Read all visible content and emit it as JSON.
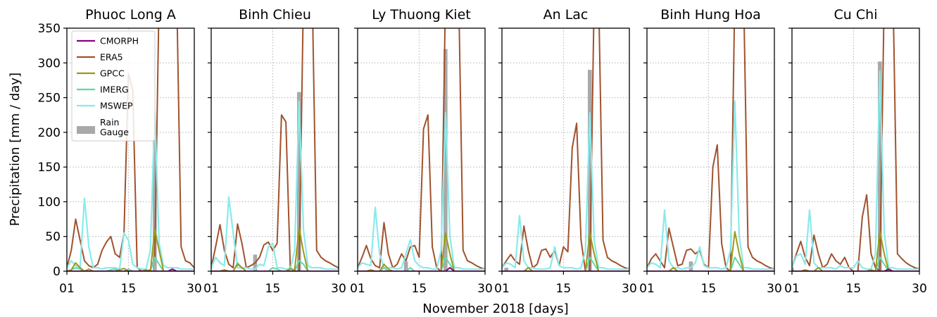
{
  "chart_data": {
    "type": "line",
    "xlabel": "November 2018 [days]",
    "ylabel": "Precipitation [mm / day]",
    "xlim": [
      1,
      30
    ],
    "ylim": [
      0,
      350
    ],
    "xticks": [
      1,
      15,
      30
    ],
    "xtick_labels": [
      "01",
      "15",
      "30"
    ],
    "yticks": [
      0,
      50,
      100,
      150,
      200,
      250,
      300,
      350
    ],
    "grid": true,
    "legend_position": "top-left of first panel",
    "series_styles": [
      {
        "key": "CMORPH",
        "name": "CMORPH",
        "color": "#8b008b",
        "kind": "line"
      },
      {
        "key": "ERA5",
        "name": "ERA5",
        "color": "#a0522d",
        "kind": "line"
      },
      {
        "key": "GPCC",
        "name": "GPCC",
        "color": "#9a9a1a",
        "kind": "line"
      },
      {
        "key": "IMERG",
        "name": "IMERG",
        "color": "#5fd9a0",
        "kind": "line"
      },
      {
        "key": "MSWEP",
        "name": "MSWEP",
        "color": "#8aeaea",
        "kind": "line"
      },
      {
        "key": "gauge",
        "name": "Rain\nGauge",
        "color": "#a9a9a9",
        "kind": "bar"
      }
    ],
    "panels": [
      {
        "title": "Phuoc Long A",
        "series": {
          "CMORPH": [
            0,
            0,
            0,
            0,
            0,
            0,
            0,
            0,
            0,
            0,
            0,
            0,
            0,
            0,
            0,
            0,
            0,
            0,
            0,
            0,
            0,
            0,
            0,
            0,
            3,
            0,
            0,
            0,
            0,
            0
          ],
          "ERA5": [
            5,
            30,
            75,
            45,
            15,
            8,
            5,
            10,
            30,
            42,
            50,
            25,
            20,
            55,
            285,
            260,
            5,
            0,
            0,
            2,
            20,
            400,
            400,
            400,
            400,
            400,
            35,
            15,
            12,
            5
          ],
          "GPCC": [
            0,
            2,
            12,
            5,
            0,
            3,
            0,
            0,
            0,
            0,
            0,
            0,
            2,
            4,
            0,
            0,
            0,
            0,
            2,
            0,
            60,
            30,
            0,
            0,
            0,
            0,
            0,
            0,
            0,
            0
          ],
          "IMERG": [
            0,
            2,
            5,
            3,
            0,
            0,
            0,
            0,
            0,
            0,
            2,
            3,
            0,
            0,
            3,
            0,
            0,
            0,
            0,
            0,
            20,
            10,
            0,
            0,
            0,
            0,
            0,
            0,
            0,
            0
          ],
          "MSWEP": [
            5,
            15,
            8,
            5,
            105,
            35,
            5,
            5,
            3,
            5,
            5,
            5,
            3,
            55,
            45,
            10,
            5,
            3,
            3,
            30,
            230,
            40,
            8,
            5,
            5,
            5,
            3,
            3,
            3,
            3
          ],
          "gauge": [
            0,
            0,
            0,
            0,
            0,
            0,
            0,
            0,
            0,
            0,
            0,
            0,
            0,
            0,
            0,
            0,
            0,
            0,
            0,
            0,
            190,
            0,
            0,
            0,
            0,
            0,
            0,
            0,
            0,
            0
          ]
        }
      },
      {
        "title": "Binh Chieu",
        "series": {
          "CMORPH": [
            0,
            0,
            0,
            0,
            0,
            0,
            0,
            0,
            0,
            0,
            0,
            0,
            0,
            0,
            0,
            0,
            0,
            0,
            0,
            0,
            0,
            0,
            0,
            0,
            0,
            0,
            0,
            0,
            0,
            0
          ],
          "ERA5": [
            5,
            35,
            67,
            30,
            10,
            5,
            68,
            40,
            5,
            8,
            12,
            20,
            38,
            42,
            30,
            40,
            225,
            215,
            5,
            0,
            0,
            400,
            400,
            400,
            30,
            20,
            15,
            12,
            8,
            5
          ],
          "GPCC": [
            0,
            0,
            0,
            2,
            0,
            0,
            10,
            5,
            0,
            0,
            0,
            0,
            0,
            0,
            0,
            0,
            0,
            0,
            3,
            2,
            62,
            28,
            0,
            0,
            0,
            0,
            0,
            0,
            0,
            0
          ],
          "IMERG": [
            0,
            0,
            0,
            0,
            0,
            0,
            12,
            5,
            0,
            0,
            0,
            0,
            0,
            0,
            5,
            3,
            0,
            0,
            5,
            0,
            15,
            10,
            0,
            0,
            0,
            0,
            0,
            0,
            0,
            0
          ],
          "MSWEP": [
            5,
            20,
            12,
            8,
            107,
            55,
            5,
            5,
            5,
            3,
            3,
            10,
            8,
            35,
            40,
            5,
            5,
            3,
            3,
            30,
            245,
            60,
            8,
            5,
            5,
            5,
            3,
            3,
            3,
            3
          ],
          "gauge": [
            0,
            0,
            0,
            0,
            0,
            0,
            0,
            0,
            0,
            0,
            24,
            0,
            0,
            0,
            0,
            0,
            0,
            0,
            0,
            0,
            258,
            0,
            0,
            0,
            0,
            0,
            0,
            0,
            0,
            0
          ]
        }
      },
      {
        "title": "Ly Thuong Kiet",
        "series": {
          "CMORPH": [
            0,
            0,
            0,
            0,
            0,
            0,
            0,
            0,
            0,
            0,
            0,
            0,
            0,
            0,
            0,
            0,
            0,
            0,
            0,
            0,
            0,
            5,
            0,
            0,
            0,
            0,
            0,
            0,
            0,
            0
          ],
          "ERA5": [
            5,
            20,
            37,
            18,
            8,
            5,
            70,
            25,
            5,
            10,
            25,
            15,
            35,
            37,
            20,
            205,
            225,
            35,
            5,
            0,
            400,
            400,
            400,
            400,
            30,
            15,
            12,
            8,
            5,
            3
          ],
          "GPCC": [
            0,
            0,
            0,
            2,
            0,
            0,
            10,
            3,
            0,
            0,
            0,
            0,
            0,
            0,
            0,
            0,
            0,
            0,
            0,
            0,
            55,
            25,
            0,
            0,
            0,
            0,
            0,
            0,
            0,
            0
          ],
          "IMERG": [
            0,
            0,
            0,
            0,
            0,
            0,
            5,
            0,
            0,
            0,
            0,
            0,
            5,
            0,
            0,
            0,
            0,
            0,
            0,
            0,
            20,
            10,
            0,
            0,
            0,
            0,
            0,
            0,
            0,
            0
          ],
          "MSWEP": [
            5,
            12,
            10,
            8,
            92,
            25,
            5,
            5,
            5,
            3,
            5,
            25,
            45,
            15,
            8,
            5,
            5,
            3,
            3,
            30,
            228,
            50,
            5,
            5,
            3,
            3,
            3,
            3,
            3,
            3
          ],
          "gauge": [
            0,
            0,
            0,
            0,
            0,
            0,
            0,
            0,
            0,
            0,
            0,
            14,
            0,
            0,
            0,
            0,
            0,
            0,
            0,
            0,
            320,
            0,
            0,
            0,
            0,
            0,
            0,
            0,
            0,
            0
          ]
        }
      },
      {
        "title": "An Lac",
        "series": {
          "CMORPH": [
            0,
            0,
            0,
            0,
            0,
            0,
            0,
            0,
            0,
            0,
            0,
            0,
            0,
            0,
            0,
            0,
            0,
            0,
            0,
            0,
            0,
            0,
            0,
            0,
            0,
            0,
            0,
            0,
            0,
            0
          ],
          "ERA5": [
            5,
            15,
            24,
            15,
            10,
            65,
            30,
            5,
            10,
            30,
            32,
            20,
            30,
            8,
            35,
            28,
            178,
            213,
            45,
            0,
            0,
            400,
            400,
            45,
            20,
            15,
            12,
            8,
            5,
            3
          ],
          "GPCC": [
            0,
            0,
            0,
            0,
            0,
            0,
            5,
            0,
            0,
            0,
            0,
            0,
            0,
            0,
            0,
            0,
            0,
            0,
            0,
            0,
            55,
            25,
            0,
            0,
            0,
            0,
            0,
            0,
            0,
            0
          ],
          "IMERG": [
            0,
            0,
            0,
            0,
            0,
            0,
            5,
            0,
            0,
            0,
            0,
            0,
            0,
            0,
            0,
            0,
            0,
            0,
            0,
            0,
            20,
            10,
            0,
            0,
            0,
            0,
            0,
            0,
            0,
            0
          ],
          "MSWEP": [
            5,
            12,
            10,
            5,
            80,
            15,
            5,
            5,
            3,
            3,
            3,
            5,
            35,
            8,
            5,
            5,
            5,
            3,
            5,
            30,
            228,
            45,
            5,
            5,
            3,
            3,
            3,
            3,
            3,
            3
          ],
          "gauge": [
            0,
            5,
            0,
            0,
            0,
            0,
            0,
            0,
            0,
            0,
            0,
            0,
            0,
            0,
            0,
            0,
            0,
            0,
            0,
            0,
            290,
            0,
            0,
            0,
            0,
            0,
            0,
            0,
            0,
            0
          ]
        }
      },
      {
        "title": "Binh Hung Hoa",
        "series": {
          "CMORPH": [
            0,
            0,
            0,
            0,
            0,
            0,
            0,
            0,
            0,
            0,
            0,
            0,
            0,
            0,
            0,
            0,
            0,
            0,
            0,
            0,
            0,
            0,
            0,
            0,
            0,
            0,
            0,
            0,
            0,
            0
          ],
          "ERA5": [
            5,
            18,
            25,
            15,
            5,
            62,
            35,
            8,
            10,
            30,
            32,
            25,
            30,
            10,
            5,
            150,
            182,
            40,
            5,
            0,
            400,
            400,
            400,
            35,
            20,
            15,
            12,
            8,
            5,
            3
          ],
          "GPCC": [
            0,
            0,
            0,
            0,
            0,
            0,
            5,
            0,
            0,
            0,
            0,
            0,
            0,
            0,
            0,
            0,
            0,
            0,
            0,
            2,
            57,
            25,
            0,
            0,
            0,
            0,
            0,
            0,
            0,
            0
          ],
          "IMERG": [
            0,
            0,
            0,
            0,
            0,
            0,
            5,
            0,
            0,
            0,
            0,
            0,
            0,
            0,
            0,
            0,
            0,
            0,
            0,
            0,
            20,
            10,
            0,
            0,
            0,
            0,
            0,
            0,
            0,
            0
          ],
          "MSWEP": [
            5,
            12,
            10,
            5,
            88,
            15,
            5,
            5,
            3,
            5,
            5,
            12,
            35,
            8,
            5,
            5,
            5,
            3,
            5,
            30,
            245,
            50,
            5,
            5,
            3,
            3,
            3,
            3,
            3,
            3
          ],
          "gauge": [
            0,
            0,
            0,
            0,
            0,
            0,
            0,
            0,
            0,
            0,
            14,
            0,
            0,
            0,
            0,
            0,
            0,
            0,
            0,
            0,
            0,
            0,
            0,
            0,
            0,
            0,
            0,
            0,
            0,
            0
          ]
        }
      },
      {
        "title": "Cu Chi",
        "series": {
          "CMORPH": [
            0,
            0,
            0,
            0,
            0,
            0,
            0,
            0,
            0,
            0,
            0,
            0,
            0,
            0,
            0,
            0,
            0,
            0,
            0,
            0,
            0,
            0,
            3,
            0,
            0,
            0,
            0,
            0,
            0,
            0
          ],
          "ERA5": [
            5,
            25,
            43,
            20,
            8,
            52,
            25,
            5,
            10,
            25,
            15,
            10,
            20,
            5,
            0,
            0,
            78,
            110,
            25,
            5,
            0,
            400,
            400,
            400,
            25,
            18,
            12,
            8,
            5,
            3
          ],
          "GPCC": [
            0,
            0,
            0,
            2,
            0,
            0,
            5,
            0,
            0,
            0,
            0,
            0,
            0,
            0,
            0,
            0,
            0,
            0,
            2,
            0,
            57,
            25,
            0,
            0,
            0,
            0,
            0,
            0,
            0,
            0
          ],
          "IMERG": [
            0,
            0,
            0,
            0,
            0,
            0,
            5,
            0,
            0,
            0,
            0,
            0,
            0,
            0,
            0,
            0,
            0,
            0,
            0,
            0,
            20,
            10,
            0,
            0,
            0,
            0,
            0,
            0,
            0,
            0
          ],
          "MSWEP": [
            5,
            22,
            25,
            10,
            88,
            12,
            5,
            5,
            5,
            5,
            3,
            8,
            5,
            5,
            5,
            15,
            5,
            3,
            3,
            25,
            288,
            55,
            5,
            5,
            3,
            3,
            3,
            3,
            3,
            3
          ],
          "gauge": [
            5,
            0,
            0,
            0,
            0,
            0,
            0,
            0,
            0,
            0,
            0,
            0,
            0,
            0,
            0,
            0,
            0,
            0,
            0,
            0,
            302,
            0,
            0,
            0,
            0,
            0,
            0,
            0,
            0,
            0
          ]
        }
      }
    ]
  }
}
